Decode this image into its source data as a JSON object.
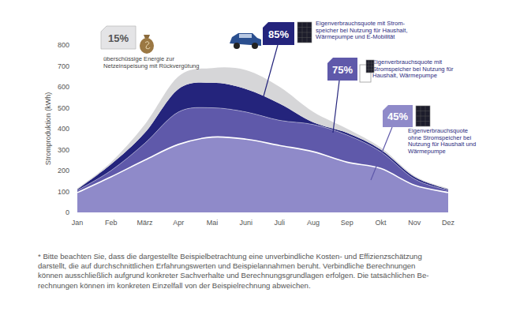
{
  "chart_data": {
    "type": "area",
    "stacked": true,
    "grid": false,
    "y_label": "Stromproduktion (kWh)",
    "categories": [
      "Jan",
      "Feb",
      "März",
      "Apr",
      "Mai",
      "Juni",
      "Juli",
      "Aug",
      "Sep",
      "Okt",
      "Nov",
      "Dez"
    ],
    "ylim": [
      0,
      800
    ],
    "yticks": [
      0,
      100,
      200,
      300,
      400,
      500,
      600,
      700,
      800
    ],
    "series": [
      {
        "name": "Eigenverbrauchsquote\nohne Stromspeicher bei\nNutzung für Haushalt und\nWärmepumpe",
        "label": "45%",
        "color": "#8f8ac9",
        "values": [
          95,
          170,
          250,
          325,
          360,
          350,
          320,
          290,
          240,
          210,
          130,
          95
        ]
      },
      {
        "name": "Eigenverbrauchsquote mit\nStromspeicher bei Nutzung für\nHaushalt, Wärmepumpe",
        "label": "75%",
        "color": "#5f59aa",
        "values": [
          10,
          30,
          80,
          155,
          140,
          130,
          120,
          130,
          130,
          80,
          30,
          10
        ]
      },
      {
        "name": "Eigenverbrauchsquote mit Strom-\nspeicher bei Nutzung für Haushalt,\nWärmepumpe und E-Mobilität",
        "label": "85%",
        "color": "#24247c",
        "values": [
          5,
          30,
          50,
          110,
          120,
          110,
          80,
          10,
          10,
          10,
          10,
          5
        ]
      },
      {
        "name": "überschüssige Energie zur\nNetzeinspeisung mit Rückvergütung",
        "label": "15%",
        "color": "#d6d6d8",
        "values": [
          5,
          10,
          40,
          60,
          70,
          90,
          80,
          50,
          20,
          10,
          5,
          5
        ]
      }
    ],
    "footnote": "* Bitte beachten Sie, dass die dargestellte Beispielbetrachtung eine unverbindliche Kosten- und Effizienzschätzung\ndarstellt, die auf durchschnittlichen Erfahrungswerten und Beispielannahmen beruht. Verbindliche Berechnungen\nkönnen ausschließlich aufgrund konkreter Sachverhalte und Berechnungsgrundlagen erfolgen. Die tatsächlichen Be-\nrechnungen können im konkreten Einzelfall von der Beispielrechnung abweichen."
  }
}
